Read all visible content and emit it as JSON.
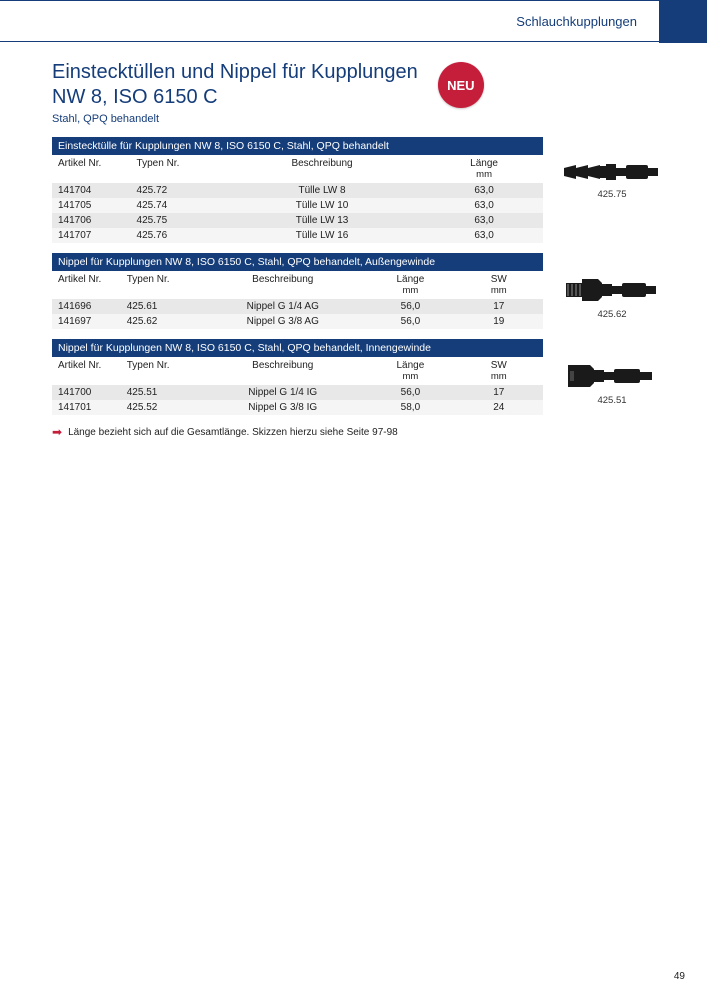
{
  "header": {
    "category": "Schlauchkupplungen"
  },
  "title": {
    "line1": "Einstecktüllen und Nippel für Kupplungen",
    "line2": "NW 8, ISO 6150 C",
    "subtitle": "Stahl, QPQ behandelt",
    "badge": "NEU"
  },
  "colors": {
    "primary": "#153d7a",
    "accent": "#c41e3a",
    "row_odd": "#e8e8e8",
    "row_even": "#f5f5f5"
  },
  "columns": {
    "artikel": "Artikel Nr.",
    "typen": "Typen Nr.",
    "beschr": "Beschreibung",
    "laenge": "Länge",
    "laenge_unit": "mm",
    "sw": "SW",
    "sw_unit": "mm"
  },
  "tables": [
    {
      "title": "Einstecktülle für Kupplungen NW 8, ISO 6150 C, Stahl, QPQ behandelt",
      "has_sw": false,
      "rows": [
        {
          "artikel": "141704",
          "typen": "425.72",
          "beschr": "Tülle LW 8",
          "laenge": "63,0"
        },
        {
          "artikel": "141705",
          "typen": "425.74",
          "beschr": "Tülle LW 10",
          "laenge": "63,0"
        },
        {
          "artikel": "141706",
          "typen": "425.75",
          "beschr": "Tülle LW 13",
          "laenge": "63,0"
        },
        {
          "artikel": "141707",
          "typen": "425.76",
          "beschr": "Tülle LW 16",
          "laenge": "63,0"
        }
      ],
      "image_caption": "425.75",
      "image_type": "barb"
    },
    {
      "title": "Nippel für Kupplungen NW 8, ISO 6150 C, Stahl, QPQ behandelt, Außengewinde",
      "has_sw": true,
      "rows": [
        {
          "artikel": "141696",
          "typen": "425.61",
          "beschr": "Nippel G 1/4 AG",
          "laenge": "56,0",
          "sw": "17"
        },
        {
          "artikel": "141697",
          "typen": "425.62",
          "beschr": "Nippel G 3/8 AG",
          "laenge": "56,0",
          "sw": "19"
        }
      ],
      "image_caption": "425.62",
      "image_type": "male"
    },
    {
      "title": "Nippel für Kupplungen NW 8, ISO 6150 C, Stahl, QPQ behandelt, Innengewinde",
      "has_sw": true,
      "rows": [
        {
          "artikel": "141700",
          "typen": "425.51",
          "beschr": "Nippel G 1/4 IG",
          "laenge": "56,0",
          "sw": "17"
        },
        {
          "artikel": "141701",
          "typen": "425.52",
          "beschr": "Nippel G 3/8 IG",
          "laenge": "58,0",
          "sw": "24"
        }
      ],
      "image_caption": "425.51",
      "image_type": "female"
    }
  ],
  "note": "Länge bezieht sich auf die Gesamtlänge. Skizzen hierzu siehe Seite 97-98",
  "page_number": "49"
}
